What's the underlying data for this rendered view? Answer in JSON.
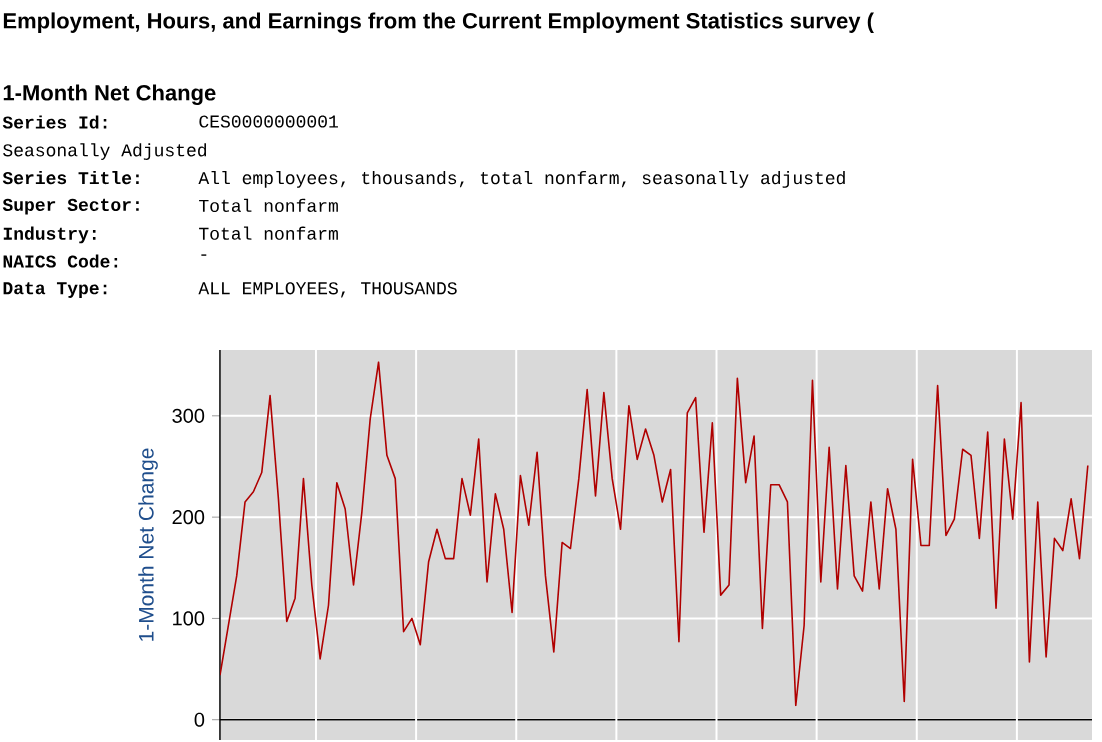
{
  "chart_data": {
    "type": "line",
    "title": "Employment, Hours, and Earnings from the Current Employment Statistics survey (",
    "subtitle": "1-Month Net Change",
    "annotations": [
      "Series Id:",
      "CES0000000001",
      "Seasonally Adjusted",
      "Series Title:",
      "All employees, thousands, total nonfarm, seasonally adjusted",
      "Super Sector:",
      "Total nonfarm",
      "Industry:",
      "Total nonfarm",
      "NAICS Code:",
      "-",
      "Data Type:",
      "ALL EMPLOYEES, THOUSANDS"
    ],
    "ylabel": "1-Month Net Change",
    "categories": [
      null,
      null,
      null,
      null,
      null,
      null,
      null,
      null,
      null,
      null,
      null,
      null,
      null,
      null,
      null,
      null,
      null,
      null,
      null,
      null,
      null,
      null,
      null,
      null,
      null,
      null,
      null,
      null,
      null,
      null,
      null,
      null,
      null,
      null,
      null,
      null,
      null,
      null,
      null,
      null,
      null,
      null,
      null,
      null,
      null,
      null,
      null,
      null,
      null,
      null,
      null,
      null,
      null,
      null,
      null,
      null,
      null,
      null,
      null,
      null,
      null,
      null,
      null,
      null,
      null,
      null,
      null,
      null,
      null,
      null,
      null,
      null,
      null,
      null,
      null,
      null,
      null,
      null,
      null,
      null,
      null,
      null,
      null,
      null,
      null,
      null,
      null,
      null,
      null,
      null,
      null,
      null,
      null,
      null,
      null,
      null,
      null,
      null,
      null,
      null,
      null,
      null,
      null,
      null,
      null
    ],
    "series": [
      {
        "color": "#b00000",
        "values": [
          44,
          93,
          142,
          215,
          225,
          244,
          320,
          218,
          97,
          120,
          238,
          133,
          60,
          113,
          234,
          208,
          133,
          205,
          297,
          353,
          261,
          238,
          87,
          100,
          74,
          156,
          188,
          159,
          159,
          238,
          202,
          277,
          136,
          223,
          188,
          106,
          241,
          192,
          264,
          142,
          67,
          175,
          169,
          238,
          326,
          221,
          323,
          238,
          188,
          310,
          257,
          287,
          261,
          215,
          247,
          77,
          303,
          318,
          185,
          293,
          123,
          133,
          337,
          234,
          280,
          90,
          232,
          232,
          215,
          14,
          93,
          335,
          136,
          269,
          129,
          251,
          142,
          127,
          215,
          129,
          228,
          188,
          18,
          257,
          172,
          172,
          330,
          182,
          198,
          267,
          261,
          179,
          284,
          110,
          277,
          198,
          313,
          57,
          215,
          62,
          179,
          167,
          218,
          159,
          251
        ]
      }
    ],
    "ylim": [
      -20,
      365
    ],
    "yticks": [
      0,
      100,
      200,
      300
    ],
    "tick_labels": "y",
    "grid": true,
    "marker": "none",
    "line_style": "solid"
  }
}
